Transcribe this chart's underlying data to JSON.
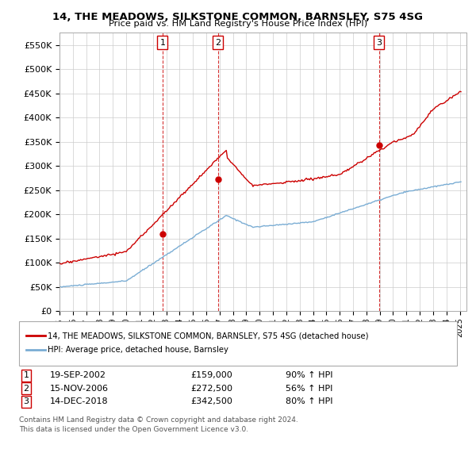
{
  "title": "14, THE MEADOWS, SILKSTONE COMMON, BARNSLEY, S75 4SG",
  "subtitle": "Price paid vs. HM Land Registry's House Price Index (HPI)",
  "ylim": [
    0,
    575000
  ],
  "yticks": [
    0,
    50000,
    100000,
    150000,
    200000,
    250000,
    300000,
    350000,
    400000,
    450000,
    500000,
    550000
  ],
  "ytick_labels": [
    "£0",
    "£50K",
    "£100K",
    "£150K",
    "£200K",
    "£250K",
    "£300K",
    "£350K",
    "£400K",
    "£450K",
    "£500K",
    "£550K"
  ],
  "line1_color": "#cc0000",
  "line2_color": "#7aadd4",
  "vline_color": "#cc0000",
  "sale_marker_color": "#cc0000",
  "legend_line1": "14, THE MEADOWS, SILKSTONE COMMON, BARNSLEY, S75 4SG (detached house)",
  "legend_line2": "HPI: Average price, detached house, Barnsley",
  "transactions": [
    {
      "num": 1,
      "date": "19-SEP-2002",
      "price": 159000,
      "pct": "90%",
      "dir": "↑",
      "year": 2002.72
    },
    {
      "num": 2,
      "date": "15-NOV-2006",
      "price": 272500,
      "pct": "56%",
      "dir": "↑",
      "year": 2006.87
    },
    {
      "num": 3,
      "date": "14-DEC-2018",
      "price": 342500,
      "pct": "80%",
      "dir": "↑",
      "year": 2018.95
    }
  ],
  "footnote1": "Contains HM Land Registry data © Crown copyright and database right 2024.",
  "footnote2": "This data is licensed under the Open Government Licence v3.0.",
  "background_color": "#ffffff",
  "plot_bg_color": "#ffffff",
  "grid_color": "#cccccc",
  "xlim_start": 1995,
  "xlim_end": 2025.5
}
